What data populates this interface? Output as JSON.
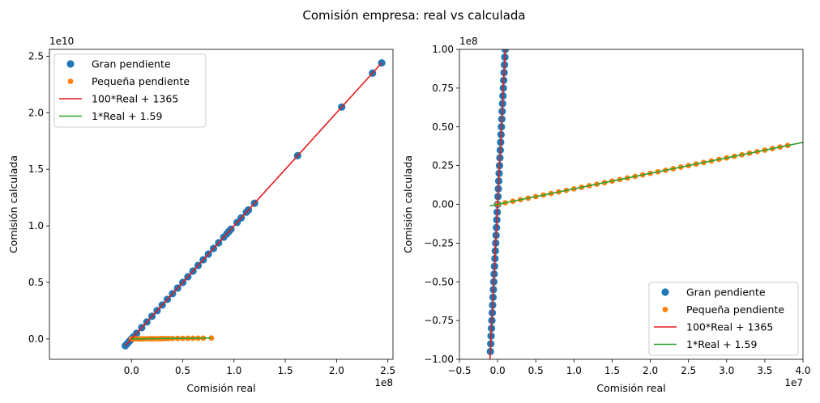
{
  "figure": {
    "title": "Comisión empresa: real vs calculada",
    "colors": {
      "big": "#1f77b4",
      "small": "#ff7f0e",
      "line100": "#e41a1c",
      "line1": "#2ca02c"
    }
  },
  "chart_data": [
    {
      "type": "scatter",
      "xlabel": "Comisión real",
      "ylabel": "Comisión calculada",
      "x_offset_label": "1e8",
      "y_offset_label": "1e10",
      "xlim": [
        -80000000,
        255000000
      ],
      "ylim": [
        -1800000000,
        25600000000
      ],
      "xticks": [
        0,
        50000000,
        100000000,
        150000000,
        200000000,
        250000000
      ],
      "xtick_labels": [
        "0.0",
        "0.5",
        "1.0",
        "1.5",
        "2.0",
        "2.5"
      ],
      "yticks": [
        0,
        5000000000,
        10000000000,
        15000000000,
        20000000000,
        25000000000
      ],
      "ytick_labels": [
        "0.0",
        "0.5",
        "1.0",
        "1.5",
        "2.0",
        "2.5"
      ],
      "legend_position": "upper-left",
      "series": [
        {
          "name": "Gran pendiente",
          "kind": "scatter",
          "color": "#1f77b4",
          "x": [
            -6000000,
            -4000000,
            -2000000,
            0,
            2000000,
            5000000,
            10000000,
            15000000,
            20000000,
            25000000,
            30000000,
            35000000,
            40000000,
            45000000,
            50000000,
            55000000,
            60000000,
            65000000,
            70000000,
            75000000,
            80000000,
            85000000,
            90000000,
            93000000,
            95000000,
            97000000,
            103000000,
            107000000,
            112000000,
            114000000,
            120000000,
            162000000,
            205000000,
            235000000,
            244000000
          ],
          "y": [
            -600000000,
            -400000000,
            -200000000,
            0,
            200000000,
            500000000,
            1000000000,
            1500000000,
            2000000000,
            2500000000,
            3000000000,
            3500000000,
            4000000000,
            4500000000,
            5000000000,
            5500000000,
            6000000000,
            6500000000,
            7000000000,
            7500000000,
            8000000000,
            8500000000,
            9000000000,
            9300000000,
            9500000000,
            9700000000,
            10300000000,
            10700000000,
            11200000000,
            11400000000,
            12000000000,
            16200000000,
            20500000000,
            23500000000,
            24400000000
          ]
        },
        {
          "name": "Pequeña pendiente",
          "kind": "scatter",
          "color": "#ff7f0e",
          "x": [
            0,
            2000000,
            4000000,
            6000000,
            8000000,
            10000000,
            12000000,
            15000000,
            18000000,
            20000000,
            22000000,
            25000000,
            28000000,
            30000000,
            33000000,
            36000000,
            40000000,
            45000000,
            50000000,
            55000000,
            60000000,
            65000000,
            70000000,
            78000000
          ],
          "y": [
            0,
            2000000,
            4000000,
            6000000,
            8000000,
            10000000,
            12000000,
            15000000,
            18000000,
            20000000,
            22000000,
            25000000,
            28000000,
            30000000,
            33000000,
            36000000,
            40000000,
            45000000,
            50000000,
            55000000,
            60000000,
            65000000,
            70000000,
            78000000
          ]
        },
        {
          "name": "100*Real + 1365",
          "kind": "line",
          "color": "#e41a1c",
          "x": [
            -6000000,
            244000000
          ],
          "slope": 100,
          "intercept": 1365
        },
        {
          "name": "1*Real + 1.59",
          "kind": "line",
          "color": "#2ca02c",
          "x": [
            0,
            78000000
          ],
          "slope": 1,
          "intercept": 1.59
        }
      ]
    },
    {
      "type": "scatter",
      "xlabel": "Comisión real",
      "ylabel": "Comisión calculada",
      "x_offset_label": "1e7",
      "y_offset_label": "1e8",
      "xlim": [
        -5000000,
        40000000
      ],
      "ylim": [
        -100000000,
        100000000
      ],
      "xticks": [
        -5000000,
        0,
        5000000,
        10000000,
        15000000,
        20000000,
        25000000,
        30000000,
        35000000,
        40000000
      ],
      "xtick_labels": [
        "−0.5",
        "0.0",
        "0.5",
        "1.0",
        "1.5",
        "2.0",
        "2.5",
        "3.0",
        "3.5",
        "4.0"
      ],
      "yticks": [
        -100000000,
        -75000000,
        -50000000,
        -25000000,
        0,
        25000000,
        50000000,
        75000000,
        100000000
      ],
      "ytick_labels": [
        "−1.00",
        "−0.75",
        "−0.50",
        "−0.25",
        "0.00",
        "0.25",
        "0.50",
        "0.75",
        "1.00"
      ],
      "legend_position": "lower-right",
      "series": [
        {
          "name": "Gran pendiente",
          "kind": "scatter",
          "color": "#1f77b4",
          "x": [
            -950000,
            -900000,
            -850000,
            -800000,
            -750000,
            -700000,
            -650000,
            -600000,
            -550000,
            -500000,
            -450000,
            -400000,
            -350000,
            -300000,
            -250000,
            -200000,
            -150000,
            -100000,
            -50000,
            0,
            50000,
            100000,
            150000,
            200000,
            250000,
            300000,
            350000,
            400000,
            450000,
            500000,
            550000,
            600000,
            650000,
            700000,
            750000,
            800000,
            850000,
            900000,
            950000,
            1000000
          ],
          "y": [
            -95000000,
            -90000000,
            -85000000,
            -80000000,
            -75000000,
            -70000000,
            -65000000,
            -60000000,
            -55000000,
            -50000000,
            -45000000,
            -40000000,
            -35000000,
            -30000000,
            -25000000,
            -20000000,
            -15000000,
            -10000000,
            -5000000,
            0,
            5000000,
            10000000,
            15000000,
            20000000,
            25000000,
            30000000,
            35000000,
            40000000,
            45000000,
            50000000,
            55000000,
            60000000,
            65000000,
            70000000,
            75000000,
            80000000,
            85000000,
            90000000,
            95000000,
            100000000
          ]
        },
        {
          "name": "Pequeña pendiente",
          "kind": "scatter",
          "color": "#ff7f0e",
          "x": [
            0,
            1000000,
            2000000,
            3000000,
            4000000,
            5000000,
            6000000,
            7000000,
            8000000,
            9000000,
            10000000,
            11000000,
            12000000,
            13000000,
            14000000,
            15000000,
            16000000,
            17000000,
            18000000,
            19000000,
            20000000,
            21000000,
            22000000,
            23000000,
            24000000,
            25000000,
            26000000,
            27000000,
            28000000,
            29000000,
            30000000,
            31000000,
            32000000,
            33000000,
            34000000,
            35000000,
            36000000,
            37000000,
            38000000
          ],
          "y": [
            0,
            1000000,
            2000000,
            3000000,
            4000000,
            5000000,
            6000000,
            7000000,
            8000000,
            9000000,
            10000000,
            11000000,
            12000000,
            13000000,
            14000000,
            15000000,
            16000000,
            17000000,
            18000000,
            19000000,
            20000000,
            21000000,
            22000000,
            23000000,
            24000000,
            25000000,
            26000000,
            27000000,
            28000000,
            29000000,
            30000000,
            31000000,
            32000000,
            33000000,
            34000000,
            35000000,
            36000000,
            37000000,
            38000000
          ]
        },
        {
          "name": "100*Real + 1365",
          "kind": "line",
          "color": "#e41a1c",
          "x": [
            -1000000,
            1000000
          ],
          "slope": 100,
          "intercept": 1365
        },
        {
          "name": "1*Real + 1.59",
          "kind": "line",
          "color": "#2ca02c",
          "x": [
            -1000000,
            40000000
          ],
          "slope": 1,
          "intercept": 1.59
        }
      ]
    }
  ]
}
